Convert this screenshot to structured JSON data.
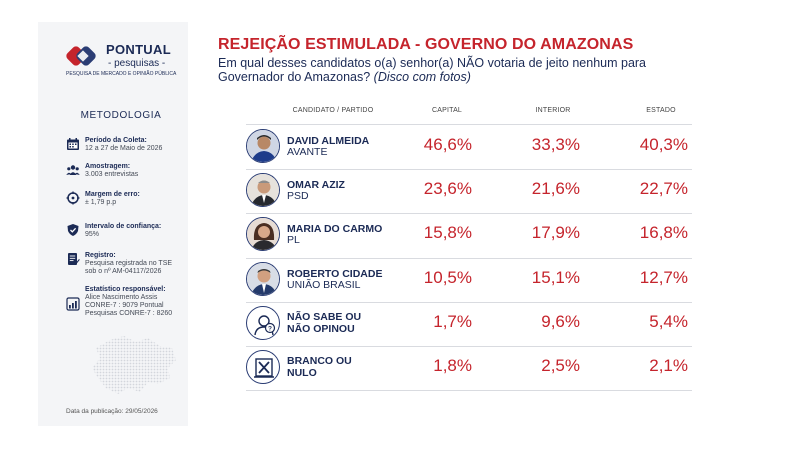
{
  "brand": {
    "name": "PONTUAL",
    "sub": "- pesquisas -",
    "tagline": "PESQUISA DE MERCADO E OPINIÃO PÚBLICA"
  },
  "methodology": {
    "title": "METODOLOGIA",
    "items": [
      {
        "icon": "calendar-icon",
        "label": "Período da Coleta:",
        "value": "12 a 27 de Maio de 2026"
      },
      {
        "icon": "people-icon",
        "label": "Amostragem:",
        "value": "3.003 entrevistas"
      },
      {
        "icon": "target-icon",
        "label": "Margem de erro:",
        "value": "± 1,79 p.p"
      },
      {
        "icon": "shield-icon",
        "label": "Intervalo de confiança:",
        "value": "95%"
      },
      {
        "icon": "document-icon",
        "label": "Registro:",
        "value": "Pesquisa registrada no TSE sob o nº AM-04117/2026"
      },
      {
        "icon": "stats-icon",
        "label": "Estatístico responsável:",
        "value": "Alice Nascimento Assis CONRE-7 : 9079 Pontual Pesquisas CONRE-7 : 8260"
      }
    ],
    "pub_date": "Data da publicação: 29/05/2026"
  },
  "header": {
    "title": "REJEIÇÃO ESTIMULADA - GOVERNO DO AMAZONAS",
    "question": "Em qual desses candidatos o(a) senhor(a) NÃO votaria de jeito nenhum para Governador do Amazonas?",
    "question_note": "(Disco com fotos)"
  },
  "colors": {
    "accent": "#c5242c",
    "navy": "#1b2a55"
  },
  "chart_data": {
    "type": "table",
    "title": "REJEIÇÃO ESTIMULADA - GOVERNO DO AMAZONAS",
    "columns": [
      "CANDIDATO / PARTIDO",
      "CAPITAL",
      "INTERIOR",
      "ESTADO"
    ],
    "rows": [
      {
        "name": "DAVID ALMEIDA",
        "party": "AVANTE",
        "avatar": "person-photo",
        "capital": "46,6%",
        "interior": "33,3%",
        "estado": "40,3%"
      },
      {
        "name": "OMAR AZIZ",
        "party": "PSD",
        "avatar": "person-photo",
        "capital": "23,6%",
        "interior": "21,6%",
        "estado": "22,7%"
      },
      {
        "name": "MARIA DO CARMO",
        "party": "PL",
        "avatar": "person-photo",
        "capital": "15,8%",
        "interior": "17,9%",
        "estado": "16,8%"
      },
      {
        "name": "ROBERTO CIDADE",
        "party": "UNIÃO BRASIL",
        "avatar": "person-photo",
        "capital": "10,5%",
        "interior": "15,1%",
        "estado": "12,7%"
      },
      {
        "name": "NÃO SABE OU",
        "party": "NÃO OPINOU",
        "avatar": "question-person-icon",
        "capital": "1,7%",
        "interior": "9,6%",
        "estado": "5,4%"
      },
      {
        "name": "BRANCO OU",
        "party": "NULO",
        "avatar": "ballot-x-icon",
        "capital": "1,8%",
        "interior": "2,5%",
        "estado": "2,1%"
      }
    ]
  }
}
